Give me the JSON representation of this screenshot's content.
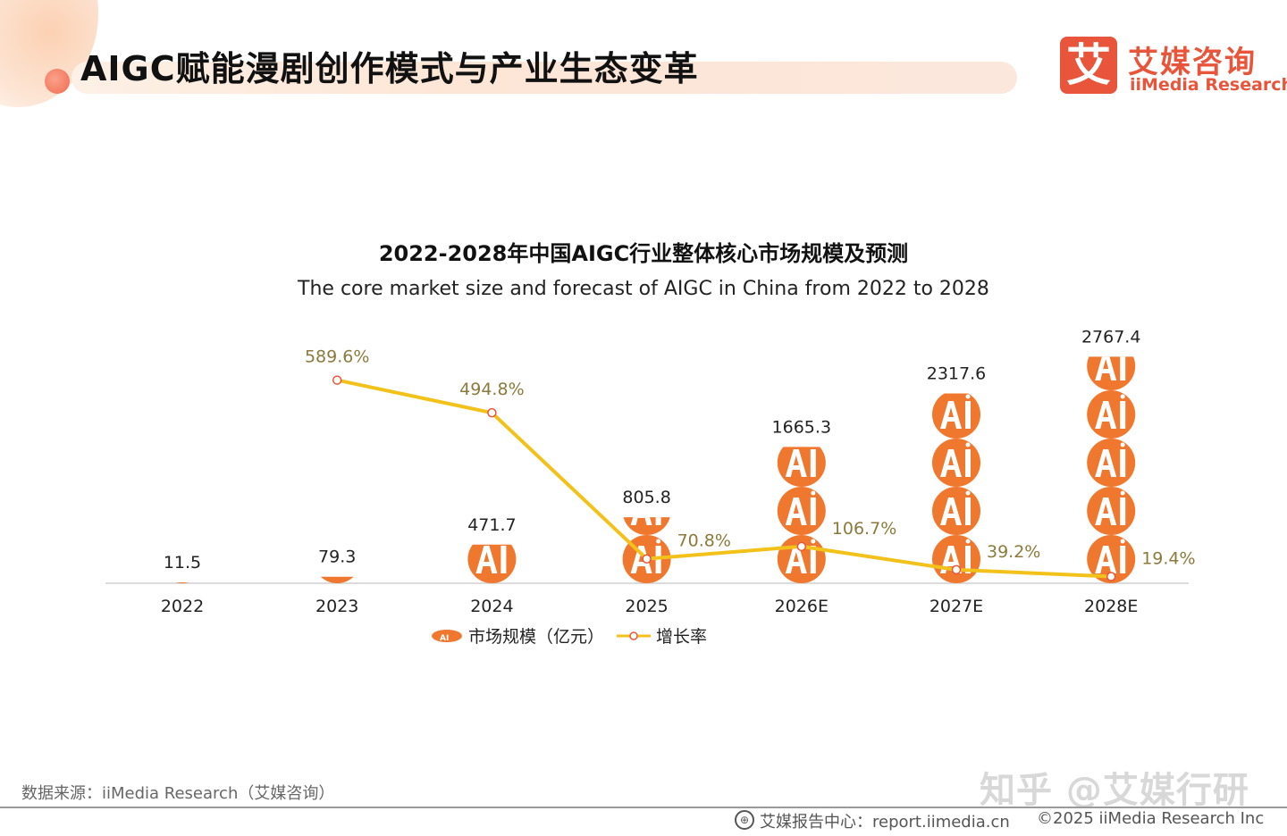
{
  "header": {
    "title": "AIGC赋能漫剧创作模式与产业生态变革",
    "logo_mark": "艾",
    "logo_cn": "艾媒咨询",
    "logo_en": "iiMedia Research"
  },
  "colors": {
    "accent": "#E8553A",
    "bar": "#F0782E",
    "line": "#F2C21A",
    "rate_label": "#8C7A3C"
  },
  "chart_data": {
    "type": "bar",
    "title": "2022-2028年中国AIGC行业整体核心市场规模及预测",
    "subtitle": "The core market size and forecast of AIGC in China from 2022 to 2028",
    "categories": [
      "2022",
      "2023",
      "2024",
      "2025",
      "2026E",
      "2027E",
      "2028E"
    ],
    "series": [
      {
        "name": "市场规模（亿元）",
        "type": "pictorial-bar",
        "values": [
          11.5,
          79.3,
          471.7,
          805.8,
          1665.3,
          2317.6,
          2767.4
        ],
        "labels": [
          "11.5",
          "79.3",
          "471.7",
          "805.8",
          "1665.3",
          "2317.6",
          "2767.4"
        ],
        "icon": "ai-badge-icon"
      },
      {
        "name": "增长率",
        "type": "line",
        "values": [
          null,
          589.6,
          494.8,
          70.8,
          106.7,
          39.2,
          19.4
        ],
        "labels": [
          "",
          "589.6%",
          "494.8%",
          "70.8%",
          "106.7%",
          "39.2%",
          "19.4%"
        ]
      }
    ],
    "legend": "bottom-center",
    "grid": false
  },
  "footer": {
    "source": "数据来源：iiMedia Research（艾媒咨询）",
    "watermark": "知乎 @艾媒行研",
    "center_text": "艾媒报告中心：report.iimedia.cn",
    "right_text": "©2025  iiMedia Research  Inc",
    "globe_icon": "globe-icon"
  }
}
